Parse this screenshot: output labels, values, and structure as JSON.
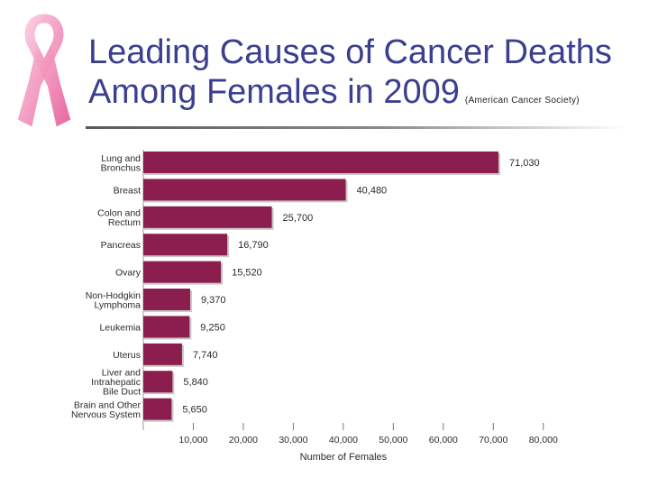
{
  "slide": {
    "title_line1": "Leading Causes of Cancer Deaths",
    "title_line2": "Among Females in 2009",
    "source": "(American Cancer Society)"
  },
  "colors": {
    "bar": "#8b1e4e",
    "title": "#3b3f8f",
    "ribbon": "#f4a9c8"
  },
  "chart_data": {
    "type": "bar",
    "orientation": "horizontal",
    "categories": [
      [
        "Lung and",
        "Bronchus"
      ],
      [
        "Breast"
      ],
      [
        "Colon and",
        "Rectum"
      ],
      [
        "Pancreas"
      ],
      [
        "Ovary"
      ],
      [
        "Non-Hodgkin",
        "Lymphoma"
      ],
      [
        "Leukemia"
      ],
      [
        "Uterus"
      ],
      [
        "Liver and",
        "Intrahepatic",
        "Bile Duct"
      ],
      [
        "Brain and Other",
        "Nervous System"
      ]
    ],
    "values": [
      71030,
      40480,
      25700,
      16790,
      15520,
      9370,
      9250,
      7740,
      5840,
      5650
    ],
    "value_labels": [
      "71,030",
      "40,480",
      "25,700",
      "16,790",
      "15,520",
      "9,370",
      "9,250",
      "7,740",
      "5,840",
      "5,650"
    ],
    "xlim": [
      0,
      80000
    ],
    "xticks": [
      10000,
      20000,
      30000,
      40000,
      50000,
      60000,
      70000,
      80000
    ],
    "xtick_labels": [
      "10,000",
      "20,000",
      "30,000",
      "40,000",
      "50,000",
      "60,000",
      "70,000",
      "80,000"
    ],
    "xlabel": "Number of Females",
    "ylabel": "",
    "grid": false,
    "legend": "none"
  }
}
